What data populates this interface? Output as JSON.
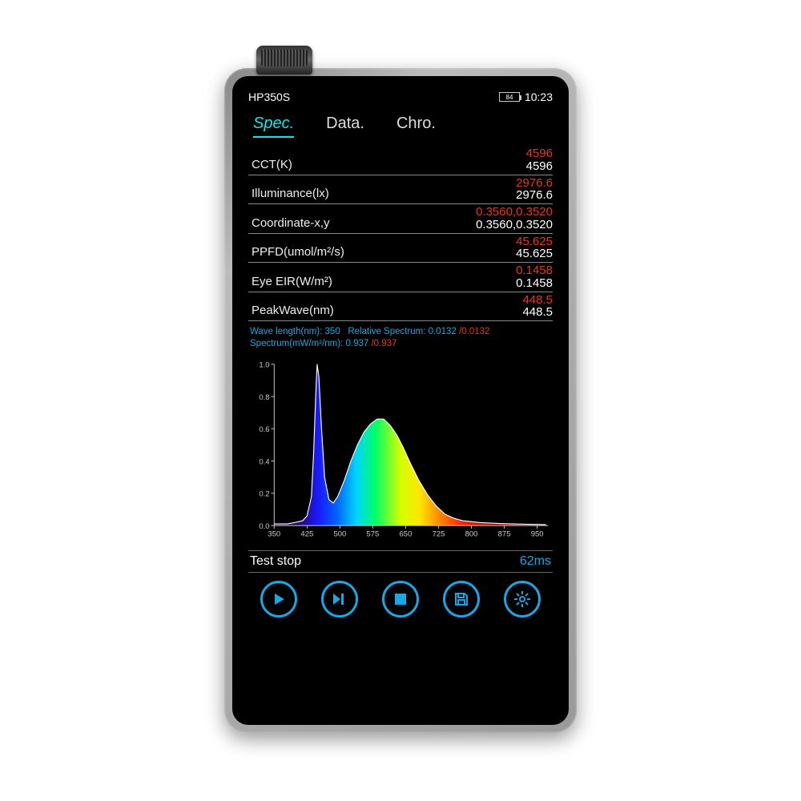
{
  "header": {
    "model": "HP350S",
    "battery": "84",
    "time": "10:23"
  },
  "tabs": [
    {
      "label": "Spec.",
      "active": true
    },
    {
      "label": "Data.",
      "active": false
    },
    {
      "label": "Chro.",
      "active": false
    }
  ],
  "readings": [
    {
      "label": "CCT(K)",
      "red": "4596",
      "white": "4596"
    },
    {
      "label": "Illuminance(lx)",
      "red": "2976.6",
      "white": "2976.6"
    },
    {
      "label": "Coordinate-x,y",
      "red": "0.3560,0.3520",
      "white": "0.3560,0.3520"
    },
    {
      "label": "PPFD(umol/m²/s)",
      "red": "45.625",
      "white": "45.625"
    },
    {
      "label": "Eye EIR(W/m²)",
      "red": "0.1458",
      "white": "0.1458"
    },
    {
      "label": "PeakWave(nm)",
      "red": "448.5",
      "white": "448.5"
    }
  ],
  "spectrum_readout": {
    "wavelength_label": "Wave length(nm):",
    "wavelength": "350",
    "relspec_label": "Relative Spectrum:",
    "relspec_w": "0.0132",
    "relspec_r": "0.0132",
    "spec_label": "Spectrum(mW/m²/nm):",
    "spec_w": "0.937",
    "spec_r": "0.937"
  },
  "chart": {
    "type": "area-spectrum",
    "xlim": [
      350,
      975
    ],
    "ylim": [
      0,
      1.0
    ],
    "xticks": [
      350,
      425,
      500,
      575,
      650,
      725,
      800,
      875,
      950
    ],
    "yticks": [
      0,
      0.2,
      0.4,
      0.6,
      0.8,
      1.0
    ],
    "axis_color": "#cccccc",
    "tick_fontsize": 10,
    "background_color": "#000000",
    "gradient_stops": [
      {
        "nm": 380,
        "color": "#2a004f"
      },
      {
        "nm": 420,
        "color": "#1a1aff"
      },
      {
        "nm": 450,
        "color": "#0066ff"
      },
      {
        "nm": 480,
        "color": "#00d4ff"
      },
      {
        "nm": 510,
        "color": "#00ff66"
      },
      {
        "nm": 550,
        "color": "#d4ff00"
      },
      {
        "nm": 580,
        "color": "#ffe600"
      },
      {
        "nm": 610,
        "color": "#ff8c00"
      },
      {
        "nm": 650,
        "color": "#ff1a00"
      },
      {
        "nm": 700,
        "color": "#a30000"
      },
      {
        "nm": 780,
        "color": "#4d0000"
      }
    ],
    "curve": [
      [
        350,
        0.01
      ],
      [
        380,
        0.01
      ],
      [
        400,
        0.02
      ],
      [
        415,
        0.03
      ],
      [
        425,
        0.06
      ],
      [
        435,
        0.18
      ],
      [
        440,
        0.45
      ],
      [
        445,
        0.82
      ],
      [
        448,
        1.0
      ],
      [
        452,
        0.92
      ],
      [
        458,
        0.6
      ],
      [
        465,
        0.3
      ],
      [
        475,
        0.16
      ],
      [
        485,
        0.14
      ],
      [
        495,
        0.18
      ],
      [
        510,
        0.28
      ],
      [
        525,
        0.4
      ],
      [
        540,
        0.5
      ],
      [
        555,
        0.58
      ],
      [
        570,
        0.63
      ],
      [
        585,
        0.66
      ],
      [
        600,
        0.66
      ],
      [
        615,
        0.62
      ],
      [
        630,
        0.56
      ],
      [
        645,
        0.48
      ],
      [
        660,
        0.39
      ],
      [
        680,
        0.28
      ],
      [
        700,
        0.19
      ],
      [
        720,
        0.12
      ],
      [
        740,
        0.07
      ],
      [
        760,
        0.045
      ],
      [
        780,
        0.03
      ],
      [
        820,
        0.018
      ],
      [
        870,
        0.012
      ],
      [
        920,
        0.008
      ],
      [
        970,
        0.006
      ]
    ],
    "top_line_color": "#ffffff"
  },
  "footer": {
    "status": "Test stop",
    "integration": "62ms"
  },
  "controls": [
    "play",
    "play-next",
    "stop",
    "save",
    "settings"
  ]
}
